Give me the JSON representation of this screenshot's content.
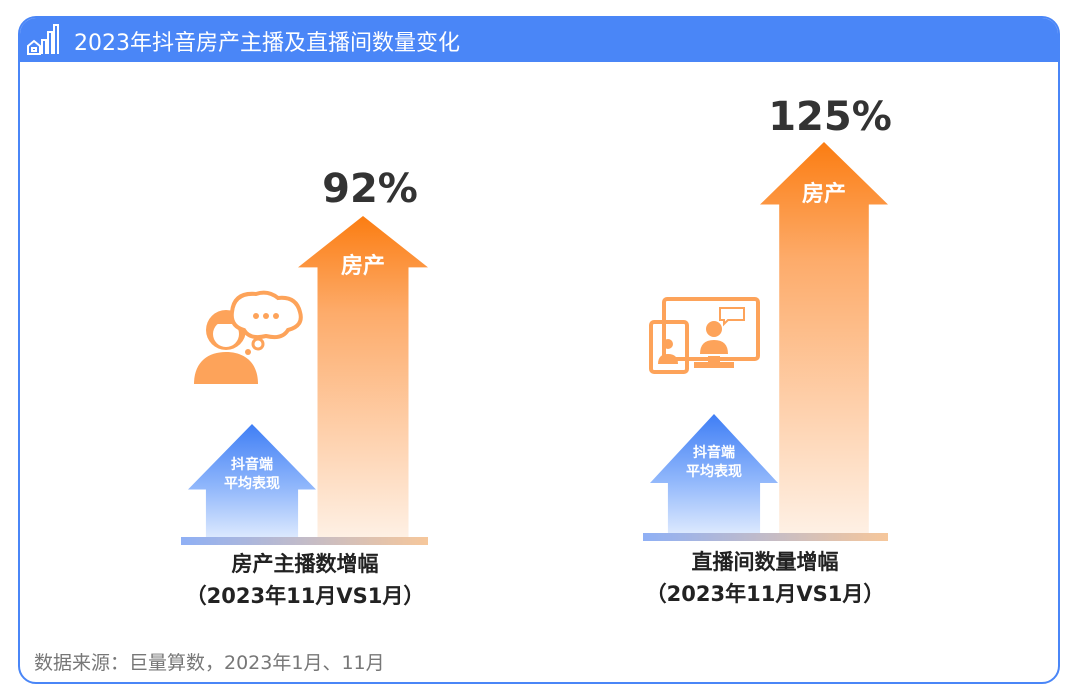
{
  "header": {
    "title": "2023年抖音房产主播及直播间数量变化",
    "icon": "house-bar-chart-icon"
  },
  "chart_data": {
    "type": "bar",
    "title": "2023年抖音房产主播及直播间数量变化",
    "series": [
      {
        "name": "房产",
        "values": [
          92,
          125
        ],
        "value_labels": [
          "92%",
          "125%"
        ]
      },
      {
        "name": "抖音端平均表现",
        "values": [
          null,
          null
        ]
      }
    ],
    "categories": [
      "房产主播数增幅",
      "直播间数量增幅"
    ],
    "category_sublabel": "（2023年11月VS1月）",
    "arrow_label": "房产",
    "house_label_line1": "抖音端",
    "house_label_line2": "平均表现"
  },
  "groups": [
    {
      "pct": "92%",
      "arrow": "房产",
      "house1": "抖音端",
      "house2": "平均表现",
      "label": "房产主播数增幅",
      "sub": "（2023年11月VS1月）",
      "icon": "person-thinking-icon"
    },
    {
      "pct": "125%",
      "arrow": "房产",
      "house1": "抖音端",
      "house2": "平均表现",
      "label": "直播间数量增幅",
      "sub": "（2023年11月VS1月）",
      "icon": "devices-livestream-icon"
    }
  ],
  "source": "数据来源：巨量算数，2023年1月、11月",
  "colors": {
    "blue": "#4a86f7",
    "orange": "#fb7d12"
  }
}
